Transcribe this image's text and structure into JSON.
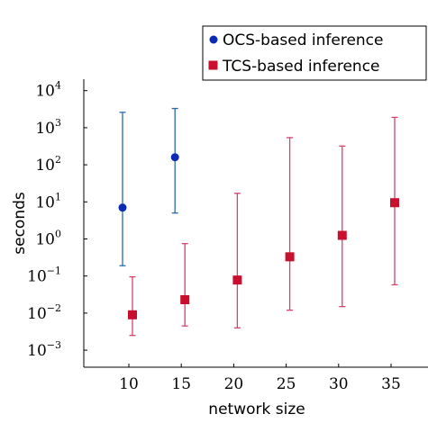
{
  "chart_data": {
    "type": "scatter",
    "xlabel": "network size",
    "ylabel": "seconds",
    "y_scale": "log",
    "xlim": [
      5,
      38
    ],
    "ylim": [
      0.0003,
      20000
    ],
    "x_ticks": [
      10,
      15,
      20,
      25,
      30,
      35
    ],
    "y_tick_exponents": [
      -3,
      -2,
      -1,
      0,
      1,
      2,
      3,
      4
    ],
    "y_tick_base": "10",
    "legend_position": "top-right",
    "grid": false,
    "series": [
      {
        "name": "OCS-based inference",
        "color": "#0b2bb5",
        "errorbar_color": "#2a6aa8",
        "marker": "circle",
        "points": [
          {
            "x": 10,
            "y": 7,
            "ymin": 0.19,
            "ymax": 2600
          },
          {
            "x": 15,
            "y": 160,
            "ymin": 5,
            "ymax": 3300
          }
        ]
      },
      {
        "name": "TCS-based inference",
        "color": "#c8102e",
        "errorbar_color": "#d6426a",
        "marker": "square",
        "points": [
          {
            "x": 10,
            "y": 0.009,
            "ymin": 0.0025,
            "ymax": 0.095
          },
          {
            "x": 15,
            "y": 0.023,
            "ymin": 0.0045,
            "ymax": 0.75
          },
          {
            "x": 20,
            "y": 0.078,
            "ymin": 0.004,
            "ymax": 17
          },
          {
            "x": 25,
            "y": 0.33,
            "ymin": 0.012,
            "ymax": 540
          },
          {
            "x": 30,
            "y": 1.25,
            "ymin": 0.015,
            "ymax": 320
          },
          {
            "x": 35,
            "y": 9.5,
            "ymin": 0.058,
            "ymax": 1900
          }
        ]
      }
    ]
  }
}
